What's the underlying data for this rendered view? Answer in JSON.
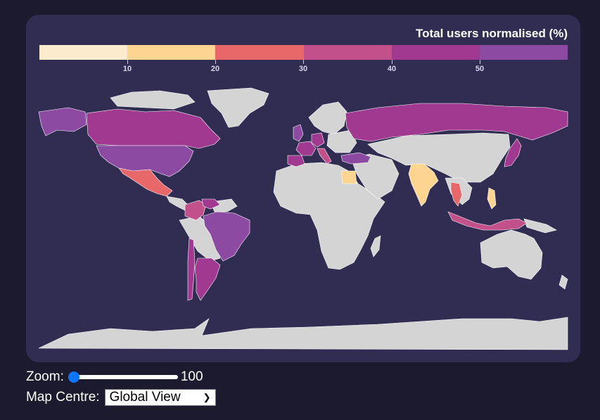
{
  "legend": {
    "title": "Total users normalised (%)",
    "colors": [
      "#fdebcd",
      "#fdd591",
      "#e8686a",
      "#c2508a",
      "#a0398f",
      "#8c4aa3"
    ],
    "ticks": [
      "10",
      "20",
      "30",
      "40",
      "50"
    ]
  },
  "map": {
    "land_color": "#d4d4d4",
    "ocean_color": "#312c52",
    "regions": [
      {
        "name": "Alaska",
        "value": 55
      },
      {
        "name": "Canada",
        "value": 45
      },
      {
        "name": "United States",
        "value": 55
      },
      {
        "name": "Mexico",
        "value": 25
      },
      {
        "name": "Colombia",
        "value": 35
      },
      {
        "name": "Venezuela",
        "value": 45
      },
      {
        "name": "Brazil",
        "value": 55
      },
      {
        "name": "Argentina",
        "value": 45
      },
      {
        "name": "Chile",
        "value": 45
      },
      {
        "name": "United Kingdom",
        "value": 55
      },
      {
        "name": "France",
        "value": 45
      },
      {
        "name": "Spain",
        "value": 45
      },
      {
        "name": "Germany",
        "value": 45
      },
      {
        "name": "Italy",
        "value": 35
      },
      {
        "name": "Russia",
        "value": 45
      },
      {
        "name": "Turkey",
        "value": 55
      },
      {
        "name": "Egypt",
        "value": 15
      },
      {
        "name": "India",
        "value": 15
      },
      {
        "name": "Thailand",
        "value": 25
      },
      {
        "name": "Philippines",
        "value": 15
      },
      {
        "name": "Indonesia",
        "value": 35
      },
      {
        "name": "Japan",
        "value": 45
      }
    ]
  },
  "controls": {
    "zoom_label": "Zoom:",
    "zoom_value": "100",
    "zoom_fraction": 0,
    "centre_label": "Map Centre:",
    "centre_selected": "Global View"
  }
}
